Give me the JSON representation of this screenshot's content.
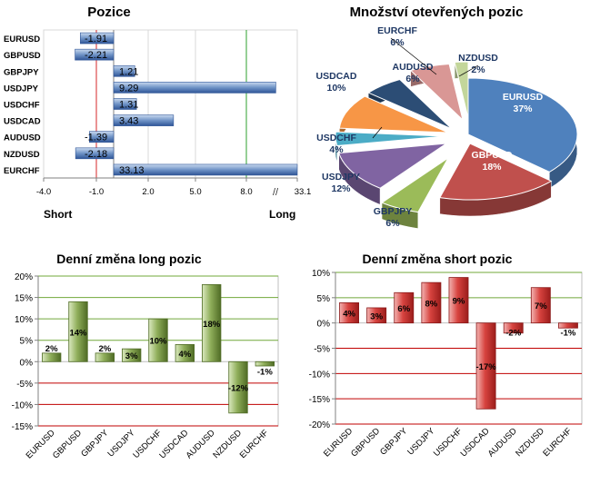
{
  "chart_data": [
    {
      "id": "positions",
      "type": "bar",
      "orientation": "horizontal",
      "title": "Pozice",
      "categories": [
        "EURUSD",
        "GBPUSD",
        "GBPJPY",
        "USDJPY",
        "USDCHF",
        "USDCAD",
        "AUDUSD",
        "NZDUSD",
        "EURCHF"
      ],
      "values": [
        -1.91,
        -2.21,
        1.21,
        9.29,
        1.31,
        3.43,
        -1.39,
        -2.18,
        33.13
      ],
      "value_labels": [
        "-1.91",
        "-2.21",
        "1.21",
        "9.29",
        "1.31",
        "3.43",
        "-1.39",
        "-2.18",
        "33.13"
      ],
      "x_ticks": [
        "-4.0",
        "-1.0",
        "2.0",
        "5.0",
        "8.0",
        "33.1"
      ],
      "left_label": "Short",
      "right_label": "Long",
      "axis_break": "//",
      "grid": true
    },
    {
      "id": "open-interest",
      "type": "pie",
      "title": "Množství otevřených pozic",
      "slices": [
        {
          "label": "EURUSD",
          "value": 37,
          "text": "37%",
          "color": "#4f81bd"
        },
        {
          "label": "GBPUSD",
          "value": 18,
          "text": "18%",
          "color": "#c0504d"
        },
        {
          "label": "GBPJPY",
          "value": 6,
          "text": "6%",
          "color": "#9bbb59"
        },
        {
          "label": "USDJPY",
          "value": 12,
          "text": "12%",
          "color": "#8064a2"
        },
        {
          "label": "USDCHF",
          "value": 4,
          "text": "4%",
          "color": "#4bacc6"
        },
        {
          "label": "USDCAD",
          "value": 10,
          "text": "10%",
          "color": "#f79646"
        },
        {
          "label": "EURCHF",
          "value": 6,
          "text": "6%",
          "color": "#2c4d75"
        },
        {
          "label": "AUDUSD",
          "value": 6,
          "text": "6%",
          "color": "#d99795"
        },
        {
          "label": "NZDUSD",
          "value": 2,
          "text": "2%",
          "color": "#c3d69b"
        }
      ]
    },
    {
      "id": "daily-long",
      "type": "bar",
      "title": "Denní změna long pozic",
      "categories": [
        "EURUSD",
        "GBPUSD",
        "GBPJPY",
        "USDJPY",
        "USDCHF",
        "USDCAD",
        "AUDUSD",
        "NZDUSD",
        "EURCHF"
      ],
      "values": [
        2,
        14,
        2,
        3,
        10,
        4,
        18,
        -12,
        -1
      ],
      "value_labels": [
        "2%",
        "14%",
        "2%",
        "3%",
        "10%",
        "4%",
        "18%",
        "-12%",
        "-1%"
      ],
      "y_ticks": [
        "20%",
        "15%",
        "10%",
        "5%",
        "0%",
        "-5%",
        "-10%",
        "-15%"
      ],
      "ylim": [
        -15,
        20
      ],
      "grid": true
    },
    {
      "id": "daily-short",
      "type": "bar",
      "title": "Denní změna short pozic",
      "categories": [
        "EURUSD",
        "GBPUSD",
        "GBPJPY",
        "USDJPY",
        "USDCHF",
        "USDCAD",
        "AUDUSD",
        "NZDUSD",
        "EURCHF"
      ],
      "values": [
        4,
        3,
        6,
        8,
        9,
        -17,
        -2,
        7,
        -1
      ],
      "value_labels": [
        "4%",
        "3%",
        "6%",
        "8%",
        "9%",
        "-17%",
        "-2%",
        "7%",
        "-1%"
      ],
      "y_ticks": [
        "10%",
        "5%",
        "0%",
        "-5%",
        "-10%",
        "-15%",
        "-20%"
      ],
      "ylim": [
        -20,
        10
      ],
      "grid": true
    }
  ]
}
